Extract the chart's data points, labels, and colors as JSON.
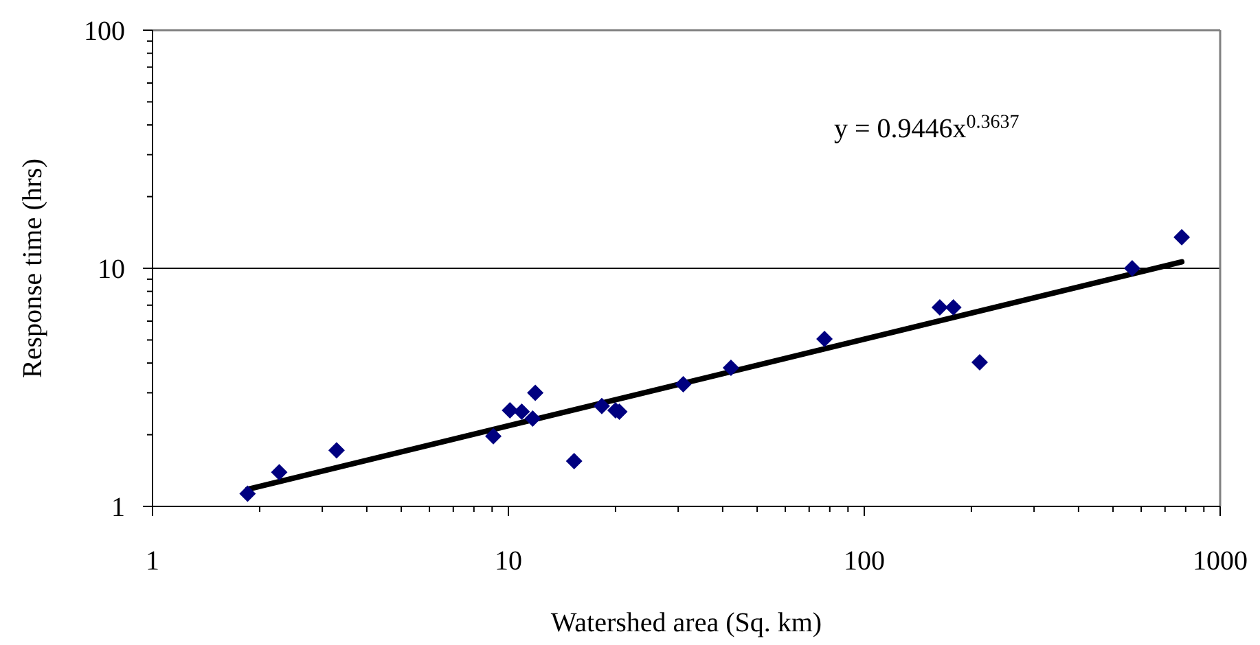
{
  "chart_data": {
    "type": "scatter",
    "xlabel": "Watershed area (Sq. km)",
    "ylabel": "Response time (hrs)",
    "log": "xy",
    "grid": "y",
    "marker": "diamond",
    "xlim": [
      1,
      1000
    ],
    "xticks": [
      1,
      10,
      100,
      1000
    ],
    "ylim": [
      1,
      100
    ],
    "yticks": [
      1,
      10,
      100
    ],
    "annotations": [
      "y = 0.9446x$^{0.3637}$"
    ],
    "series": [
      {
        "color": "#000080",
        "x": [
          1.85,
          2.27,
          3.29,
          9.07,
          10.1,
          10.9,
          11.7,
          11.9,
          15.3,
          18.3,
          20,
          20.5,
          31,
          42.2,
          77.3,
          163,
          178,
          211,
          566,
          780
        ],
        "values": [
          1.13,
          1.39,
          1.72,
          1.97,
          2.53,
          2.5,
          2.34,
          3.0,
          1.55,
          2.64,
          2.53,
          2.5,
          3.26,
          3.82,
          5.05,
          6.85,
          6.85,
          4.03,
          10.0,
          13.5
        ]
      },
      {
        "type": "line",
        "color": "#000000",
        "marker": "none",
        "x": [
          1.85,
          780
        ],
        "values": [
          1.18,
          10.64
        ]
      }
    ]
  }
}
